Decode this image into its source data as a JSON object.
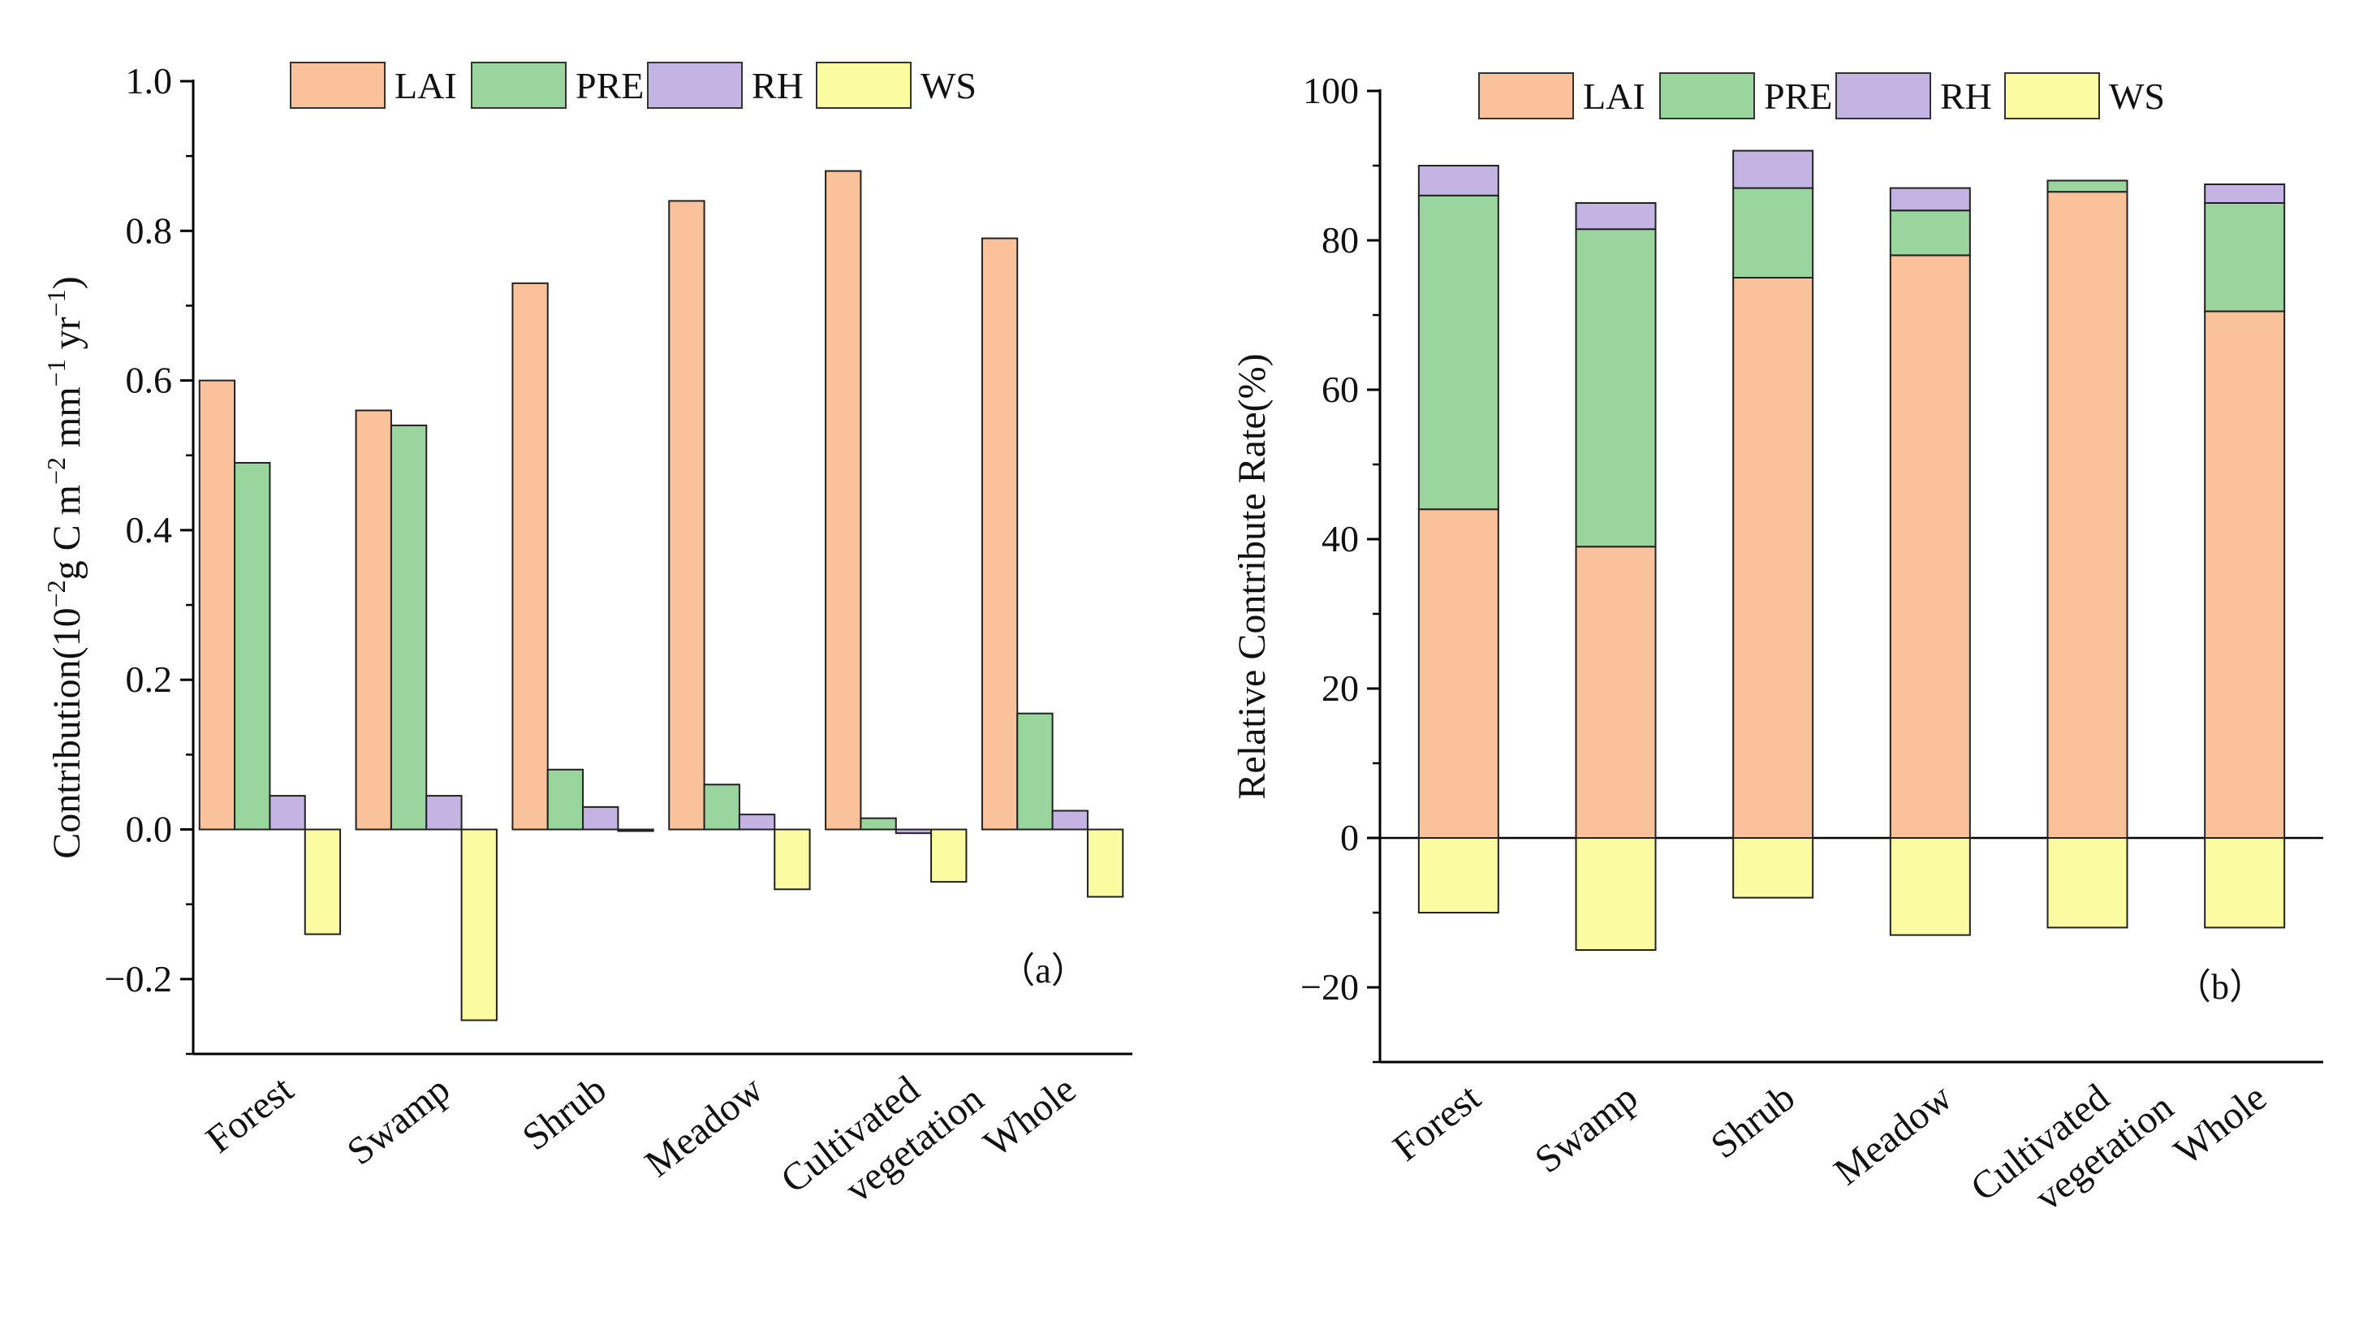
{
  "colors": {
    "LAI": "#f9c29b",
    "PRE": "#9ad59d",
    "RH": "#c3b4e3",
    "WS": "#fbfba1"
  },
  "chart_data": [
    {
      "type": "bar",
      "panel_tag": "（a）",
      "y_label_html": "Contribution(10<tspan baseline-shift=\"super\" font-size=\"32\">−2</tspan>g C m<tspan baseline-shift=\"super\" font-size=\"32\">−2</tspan> mm<tspan baseline-shift=\"super\" font-size=\"32\">−1</tspan> yr<tspan baseline-shift=\"super\" font-size=\"32\">−1</tspan>)",
      "y_label_text": "Contribution(10−2g C m−2 mm−1 yr−1)",
      "ylim": [
        -0.3,
        1.0
      ],
      "yticks": [
        -0.2,
        0.0,
        0.2,
        0.4,
        0.6,
        0.8,
        1.0
      ],
      "ytick_labels": [
        "−0.2",
        "0.0",
        "0.2",
        "0.4",
        "0.6",
        "0.8",
        "1.0"
      ],
      "categories": [
        [
          "Forest"
        ],
        [
          "Swamp"
        ],
        [
          "Shrub"
        ],
        [
          "Meadow"
        ],
        [
          "Cultivated",
          "vegetation"
        ],
        [
          "Whole"
        ]
      ],
      "legend": [
        "LAI",
        "PRE",
        "RH",
        "WS"
      ],
      "series": [
        {
          "name": "LAI",
          "values": [
            0.6,
            0.56,
            0.73,
            0.84,
            0.88,
            0.79
          ]
        },
        {
          "name": "PRE",
          "values": [
            0.49,
            0.54,
            0.08,
            0.06,
            0.015,
            0.155
          ]
        },
        {
          "name": "RH",
          "values": [
            0.045,
            0.045,
            0.03,
            0.02,
            -0.005,
            0.025
          ]
        },
        {
          "name": "WS",
          "values": [
            -0.14,
            -0.255,
            0.0,
            -0.08,
            -0.07,
            -0.09
          ]
        }
      ]
    },
    {
      "type": "stacked_bar",
      "panel_tag": "（b）",
      "y_label_text": "Relative Contribute Rate(%)",
      "ylim": [
        -30,
        100
      ],
      "yticks": [
        -20,
        0,
        20,
        40,
        60,
        80,
        100
      ],
      "ytick_labels": [
        "−20",
        "0",
        "20",
        "40",
        "60",
        "80",
        "100"
      ],
      "categories": [
        [
          "Forest"
        ],
        [
          "Swamp"
        ],
        [
          "Shrub"
        ],
        [
          "Meadow"
        ],
        [
          "Cultivated",
          "vegetation"
        ],
        [
          "Whole"
        ]
      ],
      "legend": [
        "LAI",
        "PRE",
        "RH",
        "WS"
      ],
      "series": [
        {
          "name": "LAI",
          "values": [
            44,
            39,
            75,
            78,
            86.5,
            70.5
          ]
        },
        {
          "name": "PRE",
          "values": [
            42,
            42.5,
            12,
            6,
            1.5,
            14.5
          ]
        },
        {
          "name": "RH",
          "values": [
            4,
            3.5,
            5,
            3,
            0,
            2.5
          ]
        },
        {
          "name": "WS",
          "values": [
            -10,
            -15,
            -8,
            -13,
            -12,
            -12
          ]
        }
      ]
    }
  ]
}
